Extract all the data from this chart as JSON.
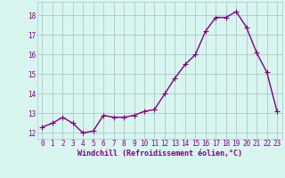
{
  "x": [
    0,
    1,
    2,
    3,
    4,
    5,
    6,
    7,
    8,
    9,
    10,
    11,
    12,
    13,
    14,
    15,
    16,
    17,
    18,
    19,
    20,
    21,
    22,
    23
  ],
  "y": [
    12.3,
    12.5,
    12.8,
    12.5,
    12.0,
    12.1,
    12.9,
    12.8,
    12.8,
    12.9,
    13.1,
    13.2,
    14.0,
    14.8,
    15.5,
    16.0,
    17.2,
    17.9,
    17.9,
    18.2,
    17.4,
    16.1,
    15.1,
    13.1
  ],
  "line_color": "#800080",
  "marker": "+",
  "marker_size": 4,
  "bg_color": "#d8f5f0",
  "grid_color": "#b0c8c8",
  "tick_color": "#800080",
  "label_color": "#800080",
  "xlabel": "Windchill (Refroidissement éolien,°C)",
  "xlim": [
    -0.5,
    23.5
  ],
  "ylim": [
    11.7,
    18.7
  ],
  "yticks": [
    12,
    13,
    14,
    15,
    16,
    17,
    18
  ],
  "xticks": [
    0,
    1,
    2,
    3,
    4,
    5,
    6,
    7,
    8,
    9,
    10,
    11,
    12,
    13,
    14,
    15,
    16,
    17,
    18,
    19,
    20,
    21,
    22,
    23
  ],
  "linewidth": 1.0,
  "tick_fontsize": 5.5,
  "xlabel_fontsize": 6.0
}
